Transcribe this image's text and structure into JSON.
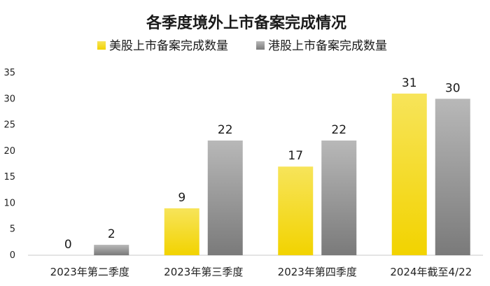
{
  "chart_data": {
    "type": "bar",
    "title": "各季度境外上市备案完成情况",
    "categories": [
      "2023年第二季度",
      "2023年第三季度",
      "2023年第四季度",
      "2024年截至4/22"
    ],
    "series": [
      {
        "name": "美股上市备案完成数量",
        "values": [
          0,
          9,
          17,
          31
        ],
        "color": "#f5d800"
      },
      {
        "name": "港股上市备案完成数量",
        "values": [
          2,
          22,
          22,
          30
        ],
        "color": "#8c8c8c"
      }
    ],
    "xlabel": "",
    "ylabel": "",
    "ylim": [
      0,
      35
    ],
    "yticks": [
      0,
      5,
      10,
      15,
      20,
      25,
      30,
      35
    ],
    "grid": false,
    "legend": "top-center"
  }
}
